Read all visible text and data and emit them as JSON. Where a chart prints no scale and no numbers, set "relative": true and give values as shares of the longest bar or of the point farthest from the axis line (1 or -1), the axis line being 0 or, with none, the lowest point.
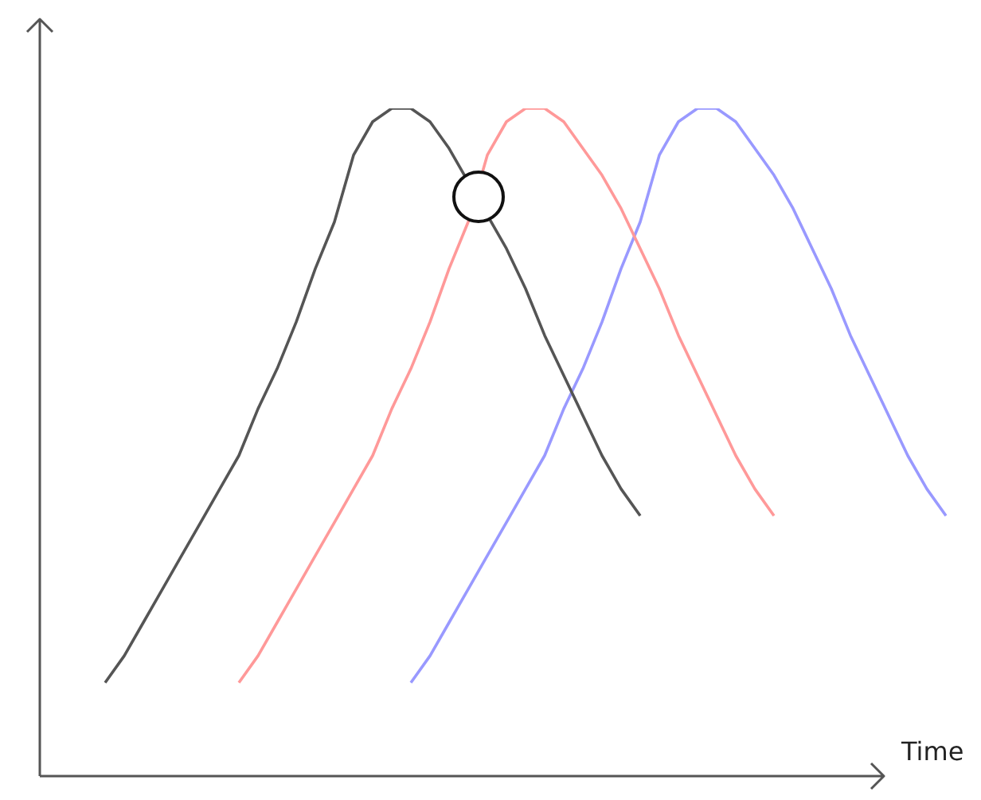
{
  "chart_data": {
    "type": "line",
    "relative": true,
    "xlabel": "Time",
    "marker": "none",
    "line_style": "solid",
    "categories": [
      null,
      null,
      null,
      null,
      null,
      null,
      null,
      null,
      null,
      null,
      null,
      null,
      null,
      null,
      null,
      null,
      null,
      null,
      null,
      null,
      null,
      null,
      null,
      null,
      null,
      null,
      null,
      null,
      null,
      null,
      null,
      null,
      null,
      null,
      null,
      null,
      null,
      null,
      null,
      null,
      null,
      null,
      null,
      null,
      null
    ],
    "series": [
      {
        "color": "#555555",
        "values": [
          0.14,
          0.18,
          0.23,
          0.28,
          0.33,
          0.38,
          0.43,
          0.48,
          0.55,
          0.61,
          0.68,
          0.76,
          0.83,
          0.93,
          0.98,
          1.0,
          1.0,
          0.98,
          0.94,
          null,
          null,
          0.79,
          0.73,
          0.66,
          0.6,
          0.54,
          0.48,
          0.43,
          0.39,
          null,
          null,
          null,
          null,
          null,
          null,
          null,
          null,
          null,
          null,
          null,
          null,
          null,
          null,
          null,
          null
        ]
      },
      {
        "color": "#ff9999",
        "values": [
          null,
          null,
          null,
          null,
          null,
          null,
          null,
          0.14,
          0.18,
          0.23,
          0.28,
          0.33,
          0.38,
          0.43,
          0.48,
          0.55,
          0.61,
          0.68,
          0.76,
          0.83,
          0.93,
          0.98,
          1.0,
          1.0,
          0.98,
          0.94,
          0.9,
          0.85,
          0.79,
          0.73,
          0.66,
          0.6,
          0.54,
          0.48,
          0.43,
          0.39,
          null,
          null,
          null,
          null,
          null,
          null,
          null,
          null,
          null
        ]
      },
      {
        "color": "#9999ff",
        "values": [
          null,
          null,
          null,
          null,
          null,
          null,
          null,
          null,
          null,
          null,
          null,
          null,
          null,
          null,
          null,
          null,
          0.14,
          0.18,
          0.23,
          0.28,
          0.33,
          0.38,
          0.43,
          0.48,
          0.55,
          0.61,
          0.68,
          0.76,
          0.83,
          0.93,
          0.98,
          1.0,
          1.0,
          0.98,
          0.94,
          0.9,
          0.85,
          0.79,
          0.73,
          0.66,
          0.6,
          0.54,
          0.48,
          0.43,
          0.39
        ]
      }
    ]
  }
}
